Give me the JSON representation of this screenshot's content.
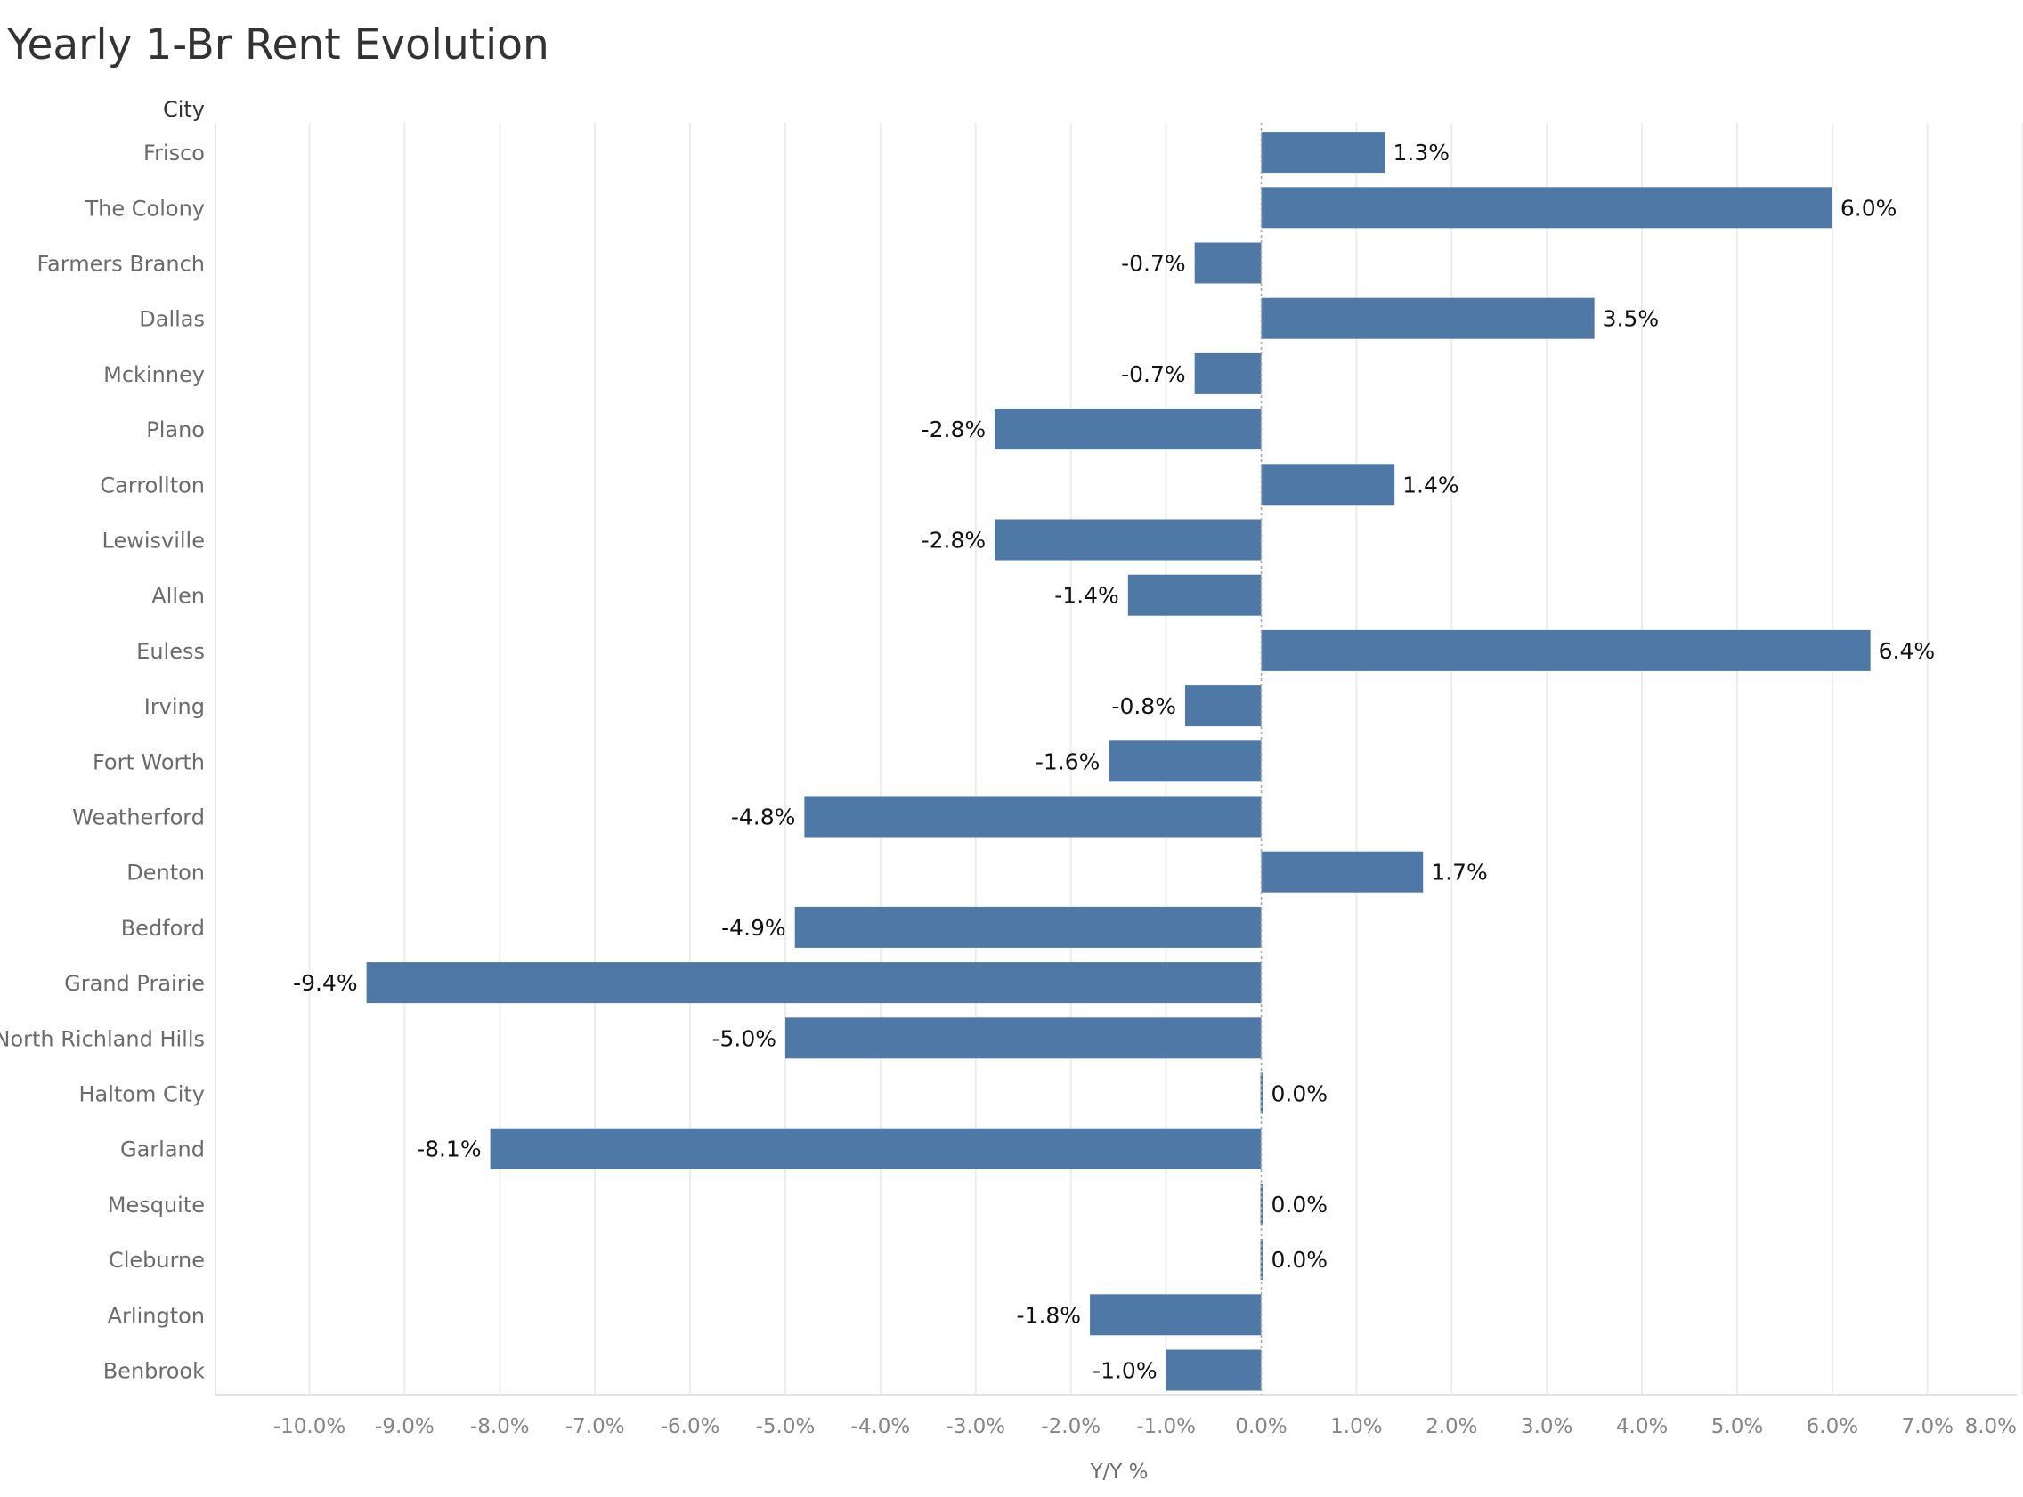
{
  "chart_data": {
    "type": "bar",
    "orientation": "horizontal",
    "title": "Yearly 1-Br Rent Evolution",
    "category_header": "City",
    "xlabel": "Y/Y %",
    "ylabel": "",
    "xlim": [
      -11,
      8
    ],
    "x_ticks": [
      -10,
      -9,
      -8,
      -7,
      -6,
      -5,
      -4,
      -3,
      -2,
      -1,
      0,
      1,
      2,
      3,
      4,
      5,
      6,
      7,
      8
    ],
    "x_tick_labels": [
      "-10.0%",
      "-9.0%",
      "-8.0%",
      "-7.0%",
      "-6.0%",
      "-5.0%",
      "-4.0%",
      "-3.0%",
      "-2.0%",
      "-1.0%",
      "0.0%",
      "1.0%",
      "2.0%",
      "3.0%",
      "4.0%",
      "5.0%",
      "6.0%",
      "7.0%",
      "8.0%"
    ],
    "grid": true,
    "bar_color": "#4e79a7",
    "categories": [
      "Frisco",
      "The Colony",
      "Farmers Branch",
      "Dallas",
      "Mckinney",
      "Plano",
      "Carrollton",
      "Lewisville",
      "Allen",
      "Euless",
      "Irving",
      "Fort Worth",
      "Weatherford",
      "Denton",
      "Bedford",
      "Grand Prairie",
      "North Richland Hills",
      "Haltom City",
      "Garland",
      "Mesquite",
      "Cleburne",
      "Arlington",
      "Benbrook"
    ],
    "values": [
      1.3,
      6.0,
      -0.7,
      3.5,
      -0.7,
      -2.8,
      1.4,
      -2.8,
      -1.4,
      6.4,
      -0.8,
      -1.6,
      -4.8,
      1.7,
      -4.9,
      -9.4,
      -5.0,
      0.0,
      -8.1,
      0.0,
      0.0,
      -1.8,
      -1.0
    ],
    "value_labels": [
      "1.3%",
      "6.0%",
      "-0.7%",
      "3.5%",
      "-0.7%",
      "-2.8%",
      "1.4%",
      "-2.8%",
      "-1.4%",
      "6.4%",
      "-0.8%",
      "-1.6%",
      "-4.8%",
      "1.7%",
      "-4.9%",
      "-9.4%",
      "-5.0%",
      "0.0%",
      "-8.1%",
      "0.0%",
      "0.0%",
      "-1.8%",
      "-1.0%"
    ]
  }
}
